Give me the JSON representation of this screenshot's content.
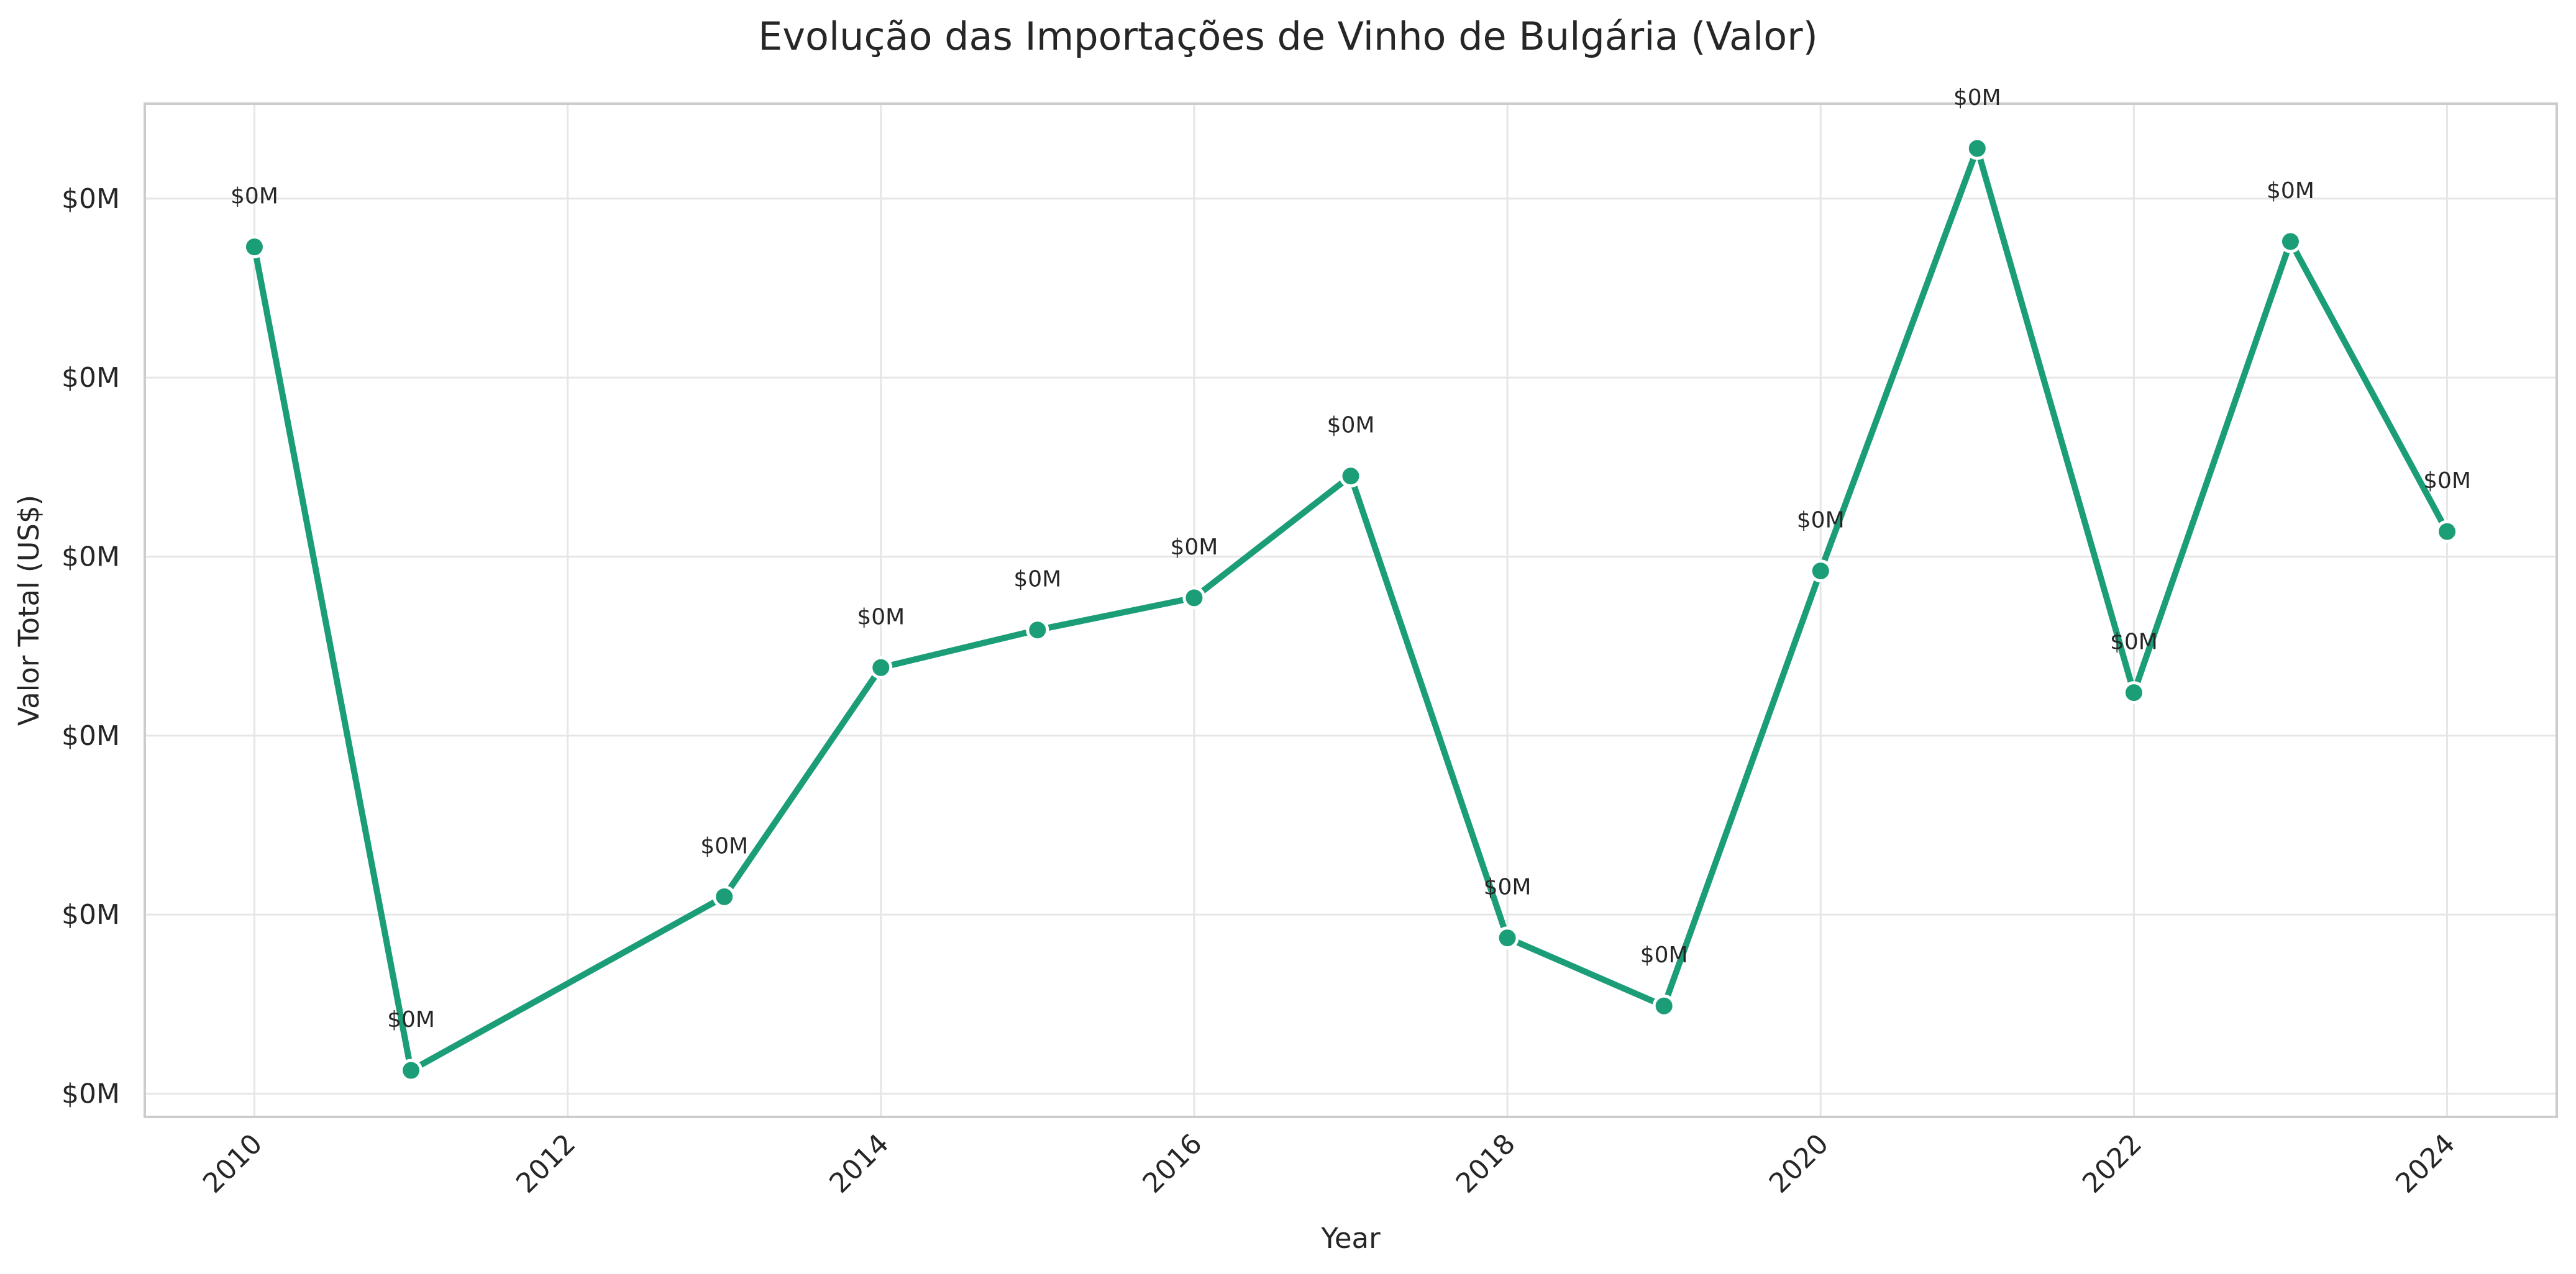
{
  "chart_data": {
    "type": "line",
    "title": "Evolução das Importações de Vinho de Bulgária (Valor)",
    "xlabel": "Year",
    "ylabel": "Valor Total (US$)",
    "x_ticks": [
      "2010",
      "2012",
      "2014",
      "2016",
      "2018",
      "2020",
      "2022",
      "2024"
    ],
    "y_tick_labels": [
      "$0M",
      "$0M",
      "$0M",
      "$0M",
      "$0M",
      "$0M"
    ],
    "xlim": [
      2009.3,
      2024.7
    ],
    "ylim": [
      -0.13,
      5.53
    ],
    "grid": true,
    "legend": "none",
    "line_color": "#1b9e77",
    "series": [
      {
        "x": [
          2010,
          2011,
          2013,
          2014,
          2015,
          2016,
          2017,
          2018,
          2019,
          2020,
          2021,
          2022,
          2023,
          2024
        ],
        "y": [
          4.73,
          0.13,
          1.1,
          2.38,
          2.59,
          2.77,
          3.45,
          0.87,
          0.49,
          2.92,
          5.28,
          2.24,
          4.76,
          3.14
        ],
        "labels": [
          "$0M",
          "$0M",
          "$0M",
          "$0M",
          "$0M",
          "$0M",
          "$0M",
          "$0M",
          "$0M",
          "$0M",
          "$0M",
          "$0M",
          "$0M",
          "$0M"
        ]
      }
    ]
  }
}
